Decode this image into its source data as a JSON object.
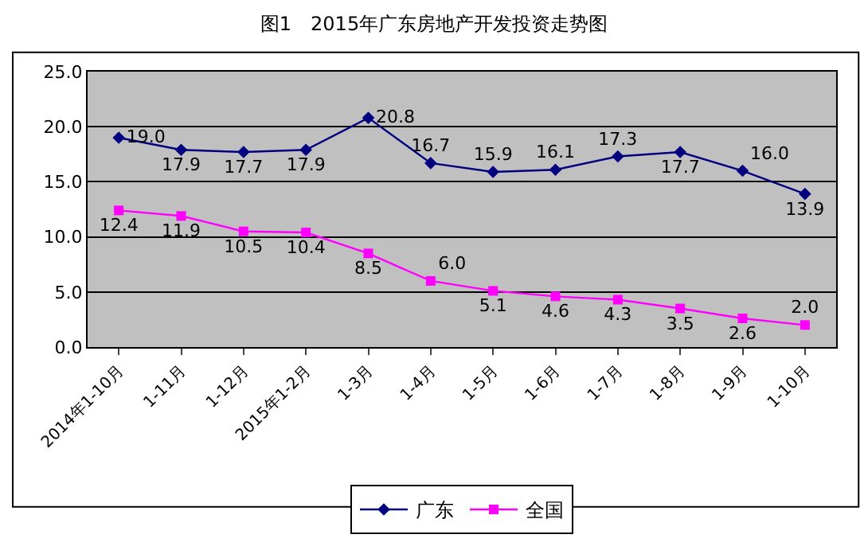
{
  "chart_data": {
    "type": "line",
    "title": "图1　2015年广东房地产开发投资走势图",
    "categories": [
      "2014年1-10月",
      "1-11月",
      "1-12月",
      "2015年1-2月",
      "1-3月",
      "1-4月",
      "1-5月",
      "1-6月",
      "1-7月",
      "1-8月",
      "1-9月",
      "1-10月"
    ],
    "series": [
      {
        "name": "广东",
        "color": "#000080",
        "marker": "diamond",
        "values": [
          19.0,
          17.9,
          17.7,
          17.9,
          20.8,
          16.7,
          15.9,
          16.1,
          17.3,
          17.7,
          16.0,
          13.9
        ],
        "value_labels": [
          "19.0",
          "17.9",
          "17.7",
          "17.9",
          "20.8",
          "16.7",
          "15.9",
          "16.1",
          "17.3",
          "17.7",
          "16.0",
          "13.9"
        ]
      },
      {
        "name": "全国",
        "color": "#ff00ff",
        "marker": "square",
        "values": [
          12.4,
          11.9,
          10.5,
          10.4,
          8.5,
          6.0,
          5.1,
          4.6,
          4.3,
          3.5,
          2.6,
          2.0
        ],
        "value_labels": [
          "12.4",
          "11.9",
          "10.5",
          "10.4",
          "8.5",
          "6.0",
          "5.1",
          "4.6",
          "4.3",
          "3.5",
          "2.6",
          "2.0"
        ]
      }
    ],
    "ylim": [
      0,
      25
    ],
    "yticks": [
      {
        "value": 0,
        "label": "0.0"
      },
      {
        "value": 5,
        "label": "5.0"
      },
      {
        "value": 10,
        "label": "10.0"
      },
      {
        "value": 15,
        "label": "15.0"
      },
      {
        "value": 20,
        "label": "20.0"
      },
      {
        "value": 25,
        "label": "25.0"
      }
    ],
    "grid": "y",
    "legend": "bottom"
  }
}
